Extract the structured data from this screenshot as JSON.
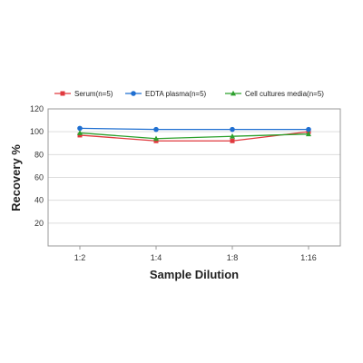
{
  "chart_data": {
    "type": "line",
    "categories": [
      "1:2",
      "1:4",
      "1:8",
      "1:16"
    ],
    "series": [
      {
        "name": "Serum(n=5)",
        "values": [
          97,
          92,
          92,
          100
        ],
        "color": "#e0393e",
        "marker": "square"
      },
      {
        "name": "EDTA plasma(n=5)",
        "values": [
          103,
          102,
          102,
          102
        ],
        "color": "#1f6fd1",
        "marker": "circle"
      },
      {
        "name": "Cell cultures media(n=5)",
        "values": [
          99,
          94,
          96,
          98
        ],
        "color": "#2ca02c",
        "marker": "triangle"
      }
    ],
    "title": "",
    "xlabel": "Sample Dilution",
    "ylabel": "Recovery %",
    "ylim": [
      0,
      120
    ],
    "yticks": [
      "20",
      "40",
      "60",
      "80",
      "100",
      "120"
    ],
    "grid": true,
    "legend": "top"
  }
}
